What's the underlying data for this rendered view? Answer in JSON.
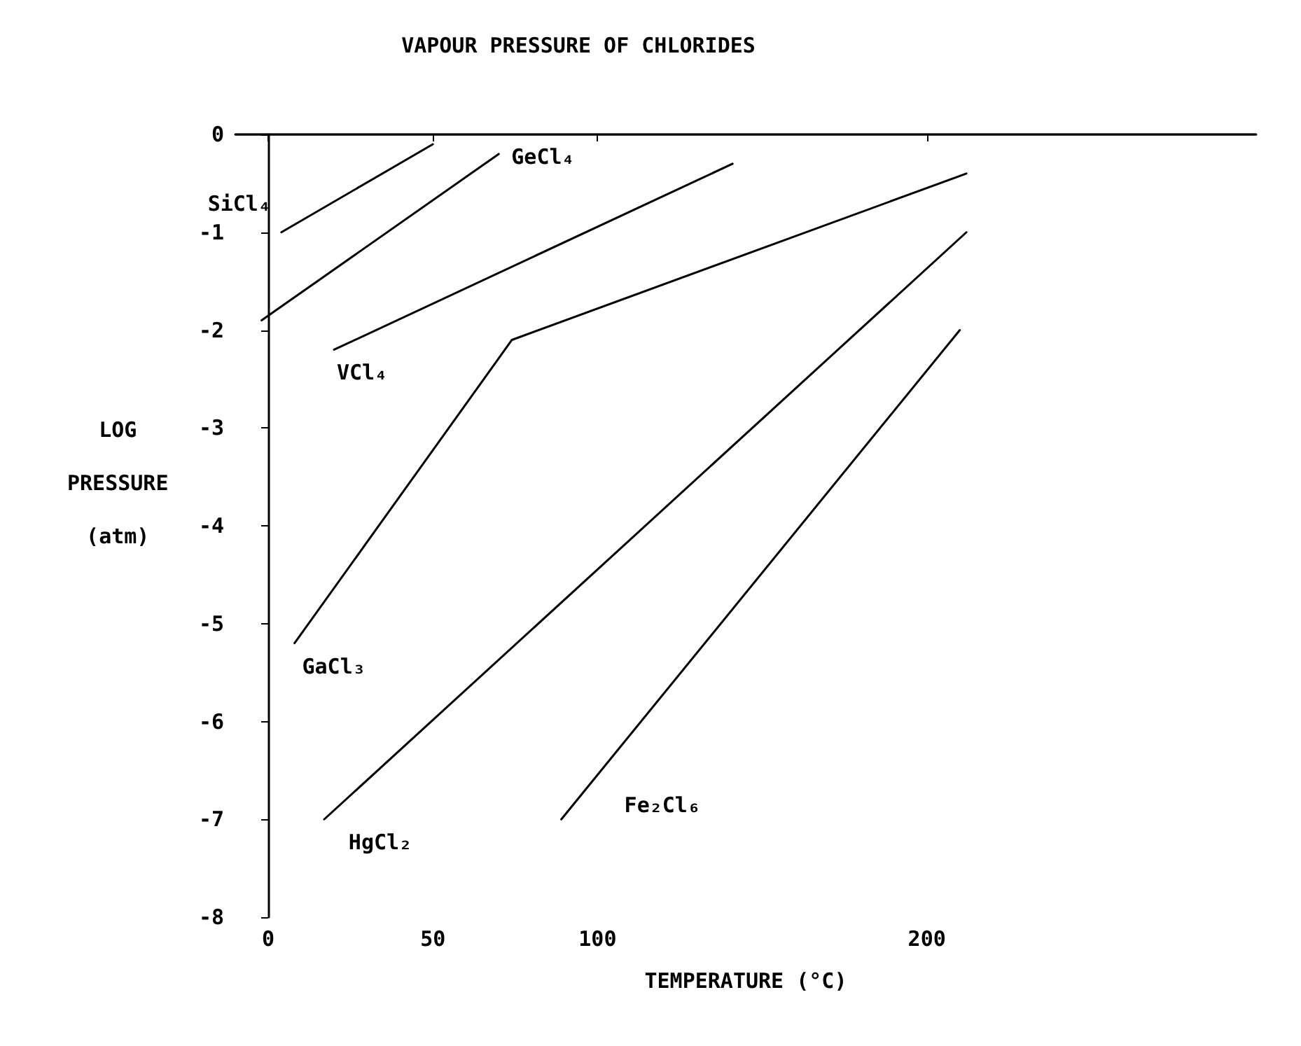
{
  "chart_data": {
    "type": "line",
    "title": "VAPOUR PRESSURE OF CHLORIDES",
    "xlabel": "TEMPERATURE (°C)",
    "ylabel": "LOG\nPRESSURE\n(atm)",
    "series": [
      {
        "name": "SiCl₄",
        "color": "#000000",
        "x": [
          4,
          50
        ],
        "values": [
          -1.0,
          -0.1
        ]
      },
      {
        "name": "GeCl₄",
        "color": "#000000",
        "x": [
          -2,
          70
        ],
        "values": [
          -1.9,
          -0.2
        ]
      },
      {
        "name": "VCl₄",
        "color": "#000000",
        "x": [
          20,
          141
        ],
        "values": [
          -2.2,
          -0.3
        ]
      },
      {
        "name": "GaCl₃",
        "color": "#000000",
        "x": [
          8,
          74,
          212
        ],
        "values": [
          -5.2,
          -2.1,
          -0.4
        ]
      },
      {
        "name": "HgCl₂",
        "color": "#000000",
        "x": [
          17,
          212
        ],
        "values": [
          -7.0,
          -1.0
        ]
      },
      {
        "name": "Fe₂Cl₆",
        "color": "#000000",
        "x": [
          89,
          210
        ],
        "values": [
          -7.0,
          -2.0
        ]
      }
    ],
    "xlim": [
      -10,
      300
    ],
    "xticks": [
      0,
      50,
      100,
      200
    ],
    "ylim": [
      -8,
      0
    ],
    "yticks": [
      -8,
      -7,
      -6,
      -5,
      -4,
      -3,
      -2,
      -1,
      0
    ],
    "grid": false,
    "legend": false,
    "marker": "none",
    "line_style": "solid"
  }
}
